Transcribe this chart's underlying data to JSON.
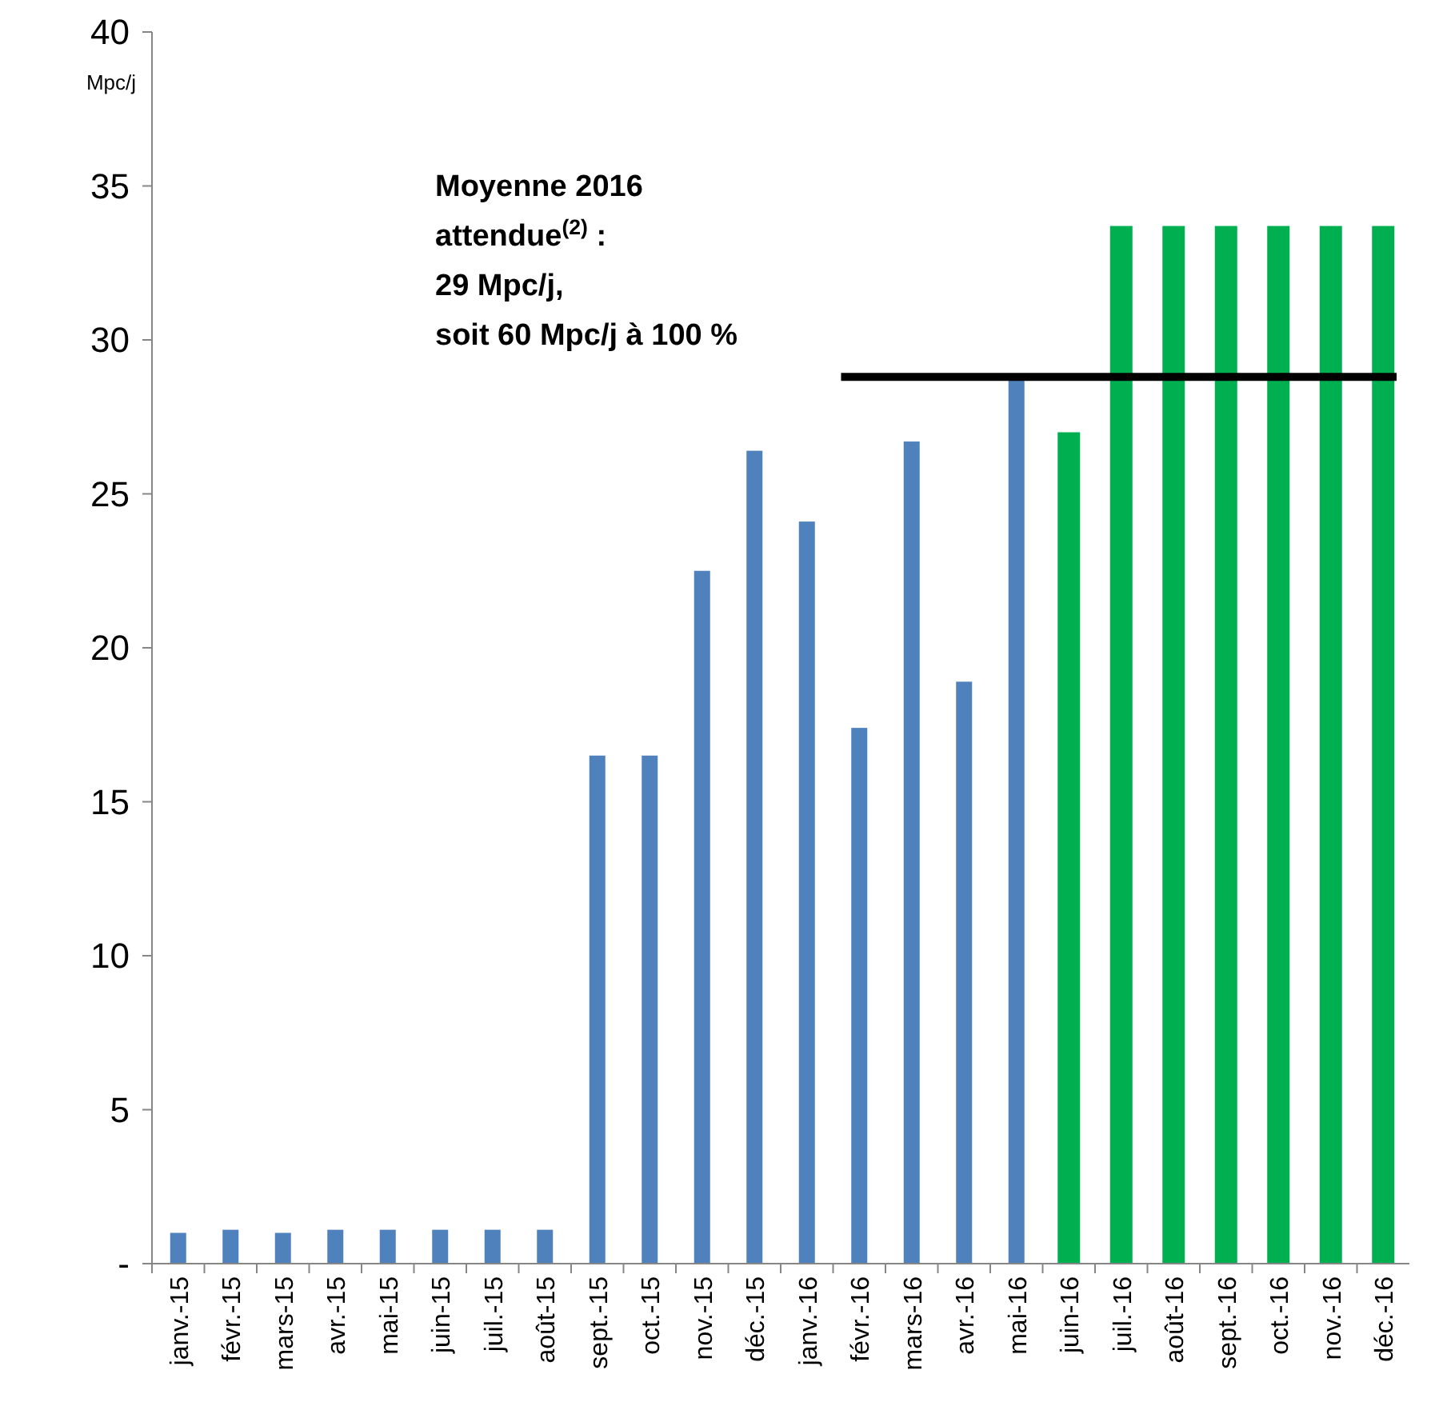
{
  "chart_data": {
    "type": "bar",
    "ylabel": "Mpc/j",
    "categories": [
      "janv.-15",
      "févr.-15",
      "mars-15",
      "avr.-15",
      "mai-15",
      "juin-15",
      "juil.-15",
      "août-15",
      "sept.-15",
      "oct.-15",
      "nov.-15",
      "déc.-15",
      "janv.-16",
      "févr.-16",
      "mars-16",
      "avr.-16",
      "mai-16",
      "juin-16",
      "juil.-16",
      "août-16",
      "sept.-16",
      "oct.-16",
      "nov.-16",
      "déc.-16"
    ],
    "series": [
      {
        "color": "#4f81bd",
        "values": [
          1.0,
          1.1,
          1.0,
          1.1,
          1.1,
          1.1,
          1.1,
          1.1,
          16.5,
          16.5,
          22.5,
          26.4,
          24.1,
          17.4,
          26.7,
          18.9,
          28.7,
          null,
          null,
          null,
          null,
          null,
          null,
          null
        ]
      },
      {
        "color": "#00b050",
        "values": [
          null,
          null,
          null,
          null,
          null,
          null,
          null,
          null,
          null,
          null,
          null,
          null,
          null,
          null,
          null,
          null,
          null,
          27.0,
          33.7,
          33.7,
          33.7,
          33.7,
          33.7,
          33.7
        ]
      }
    ],
    "ylim": [
      0,
      40
    ],
    "yticks": [
      {
        "value": 0,
        "label": "-"
      },
      5,
      10,
      15,
      20,
      25,
      30,
      35,
      40
    ],
    "grid": false,
    "ref_lines": [
      {
        "axis": "y",
        "value": 28.8,
        "color": "#000000",
        "label": "Moyenne 2016\nattendue$^{(2)}$ :\n29 Mpc/j,\nsoit 60 Mpc/j à 100 %"
      }
    ]
  }
}
